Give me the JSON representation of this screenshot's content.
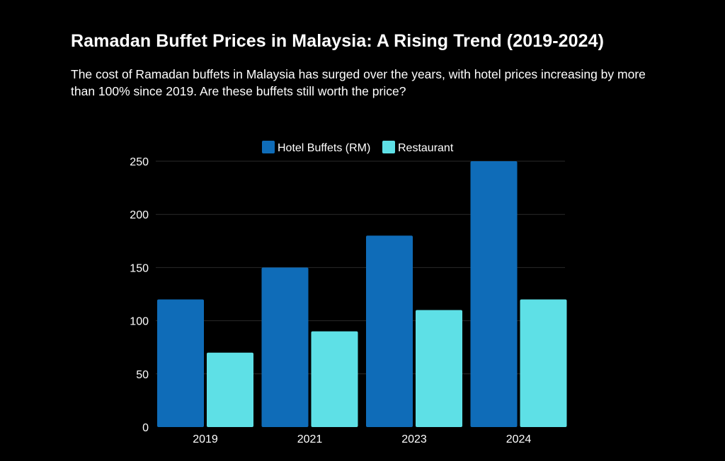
{
  "title": "Ramadan Buffet Prices in Malaysia: A Rising Trend (2019-2024)",
  "subtitle": "The cost of Ramadan buffets in Malaysia has surged over the years, with hotel prices increasing by more than 100% since 2019. Are these buffets still worth the price?",
  "chart_data": {
    "type": "bar",
    "categories": [
      "2019",
      "2021",
      "2023",
      "2024"
    ],
    "series": [
      {
        "name": "Hotel Buffets (RM)",
        "values": [
          120,
          150,
          180,
          250
        ],
        "color": "#0f6cb8"
      },
      {
        "name": "Restaurant",
        "values": [
          70,
          90,
          110,
          120
        ],
        "color": "#5ee0e6"
      }
    ],
    "title": "Ramadan Buffet Prices in Malaysia: A Rising Trend (2019-2024)",
    "xlabel": "",
    "ylabel": "",
    "ylim": [
      0,
      250
    ],
    "yticks": [
      0,
      50,
      100,
      150,
      200,
      250
    ],
    "grid": true,
    "legend_position": "top-center"
  },
  "colors": {
    "background": "#000000",
    "text": "#ffffff",
    "grid": "#2a2a2a"
  }
}
